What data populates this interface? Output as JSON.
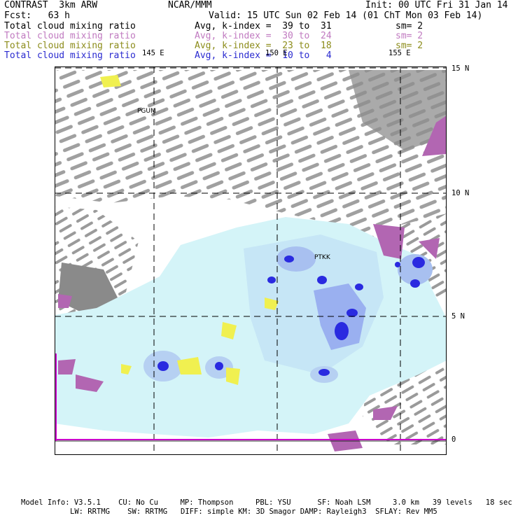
{
  "header": {
    "model": "CONTRAST  3km ARW",
    "center": "NCAR/MMM",
    "init": "Init: 00 UTC Fri 31 Jan 14",
    "fcst": "Fcst:   63 h",
    "valid": "Valid: 15 UTC Sun 02 Feb 14 (01 ChT Mon 03 Feb 14)"
  },
  "legend_rows": [
    {
      "name": "Total cloud mixing ratio",
      "avg": "Avg, k-index =  39 to  31",
      "sm": "sm= 2",
      "color": "#000000"
    },
    {
      "name": "Total cloud mixing ratio",
      "avg": "Avg, k-index =  30 to  24",
      "sm": "sm= 2",
      "color": "#c07ac0"
    },
    {
      "name": "Total cloud mixing ratio",
      "avg": "Avg, k-index =  23 to  18",
      "sm": "sm= 2",
      "color": "#8c8c1a"
    },
    {
      "name": "Total cloud mixing ratio",
      "avg": "Avg, k-index =  10 to   4",
      "sm": "",
      "color": "#2a2ad0"
    }
  ],
  "lon_labels": [
    "145 E",
    "150 E",
    "155 E"
  ],
  "lat_labels": [
    "15 N",
    "10 N",
    "5 N",
    "0"
  ],
  "stations": [
    "PGUM",
    "PTKK"
  ],
  "colors": {
    "gray_cloud": "#9a9a9a",
    "purple_cloud": "#b266b2",
    "yellow_cloud": "#f0f050",
    "light_blue_cloud": "#d4f4f8",
    "mid_blue_cloud": "#9ab0f0",
    "deep_blue_cloud": "#2222e0",
    "equator_line": "#cc00cc"
  },
  "footer": {
    "line1": "Model Info: V3.5.1    CU: No Cu     MP: Thompson     PBL: YSU      SF: Noah LSM     3.0 km   39 levels   18 sec",
    "line2": "LW: RRTMG    SW: RRTMG   DIFF: simple KM: 3D Smagor DAMP: Rayleigh3  SFLAY: Rev MM5"
  }
}
